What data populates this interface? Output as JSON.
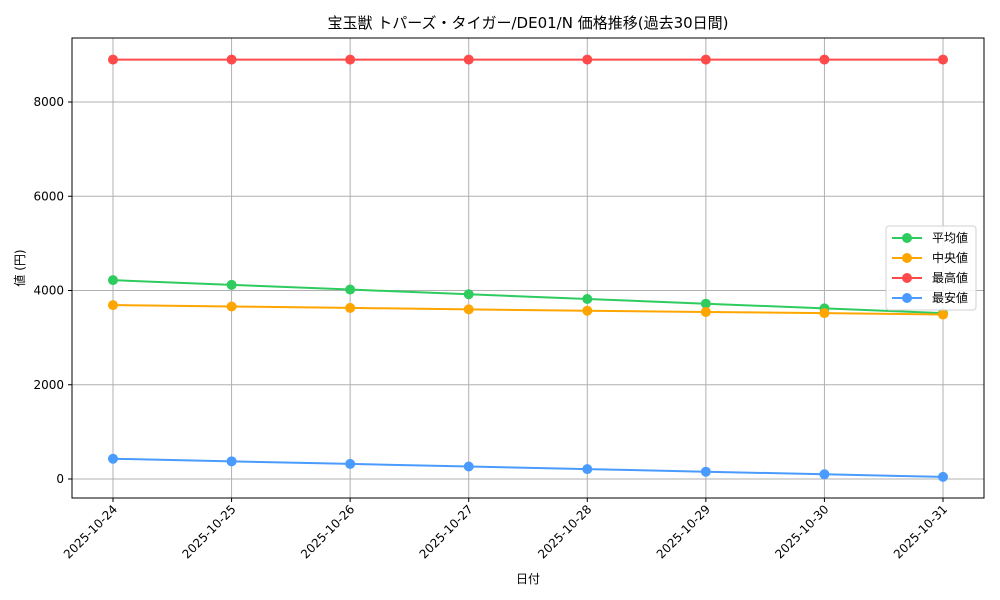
{
  "chart_data": {
    "type": "line",
    "title": "宝玉獣 トパーズ・タイガー/DE01/N 価格推移(過去30日間)",
    "xlabel": "日付",
    "ylabel": "値 (円)",
    "categories": [
      "2025-10-24",
      "2025-10-25",
      "2025-10-26",
      "2025-10-27",
      "2025-10-28",
      "2025-10-29",
      "2025-10-30",
      "2025-10-31"
    ],
    "ylim": [
      -400,
      9350
    ],
    "yticks": [
      0,
      2000,
      4000,
      6000,
      8000
    ],
    "grid": true,
    "legend_position": "center right",
    "series": [
      {
        "name": "平均値",
        "color": "#2ecc5f",
        "values": [
          4220,
          4120,
          4020,
          3920,
          3820,
          3720,
          3620,
          3520
        ]
      },
      {
        "name": "中央値",
        "color": "#ffa500",
        "values": [
          3690,
          3660,
          3630,
          3600,
          3570,
          3545,
          3520,
          3490
        ]
      },
      {
        "name": "最高値",
        "color": "#ff4a4a",
        "values": [
          8900,
          8900,
          8900,
          8900,
          8900,
          8900,
          8900,
          8900
        ]
      },
      {
        "name": "最安値",
        "color": "#4a9bff",
        "values": [
          430,
          375,
          320,
          265,
          210,
          155,
          100,
          45
        ]
      }
    ]
  }
}
